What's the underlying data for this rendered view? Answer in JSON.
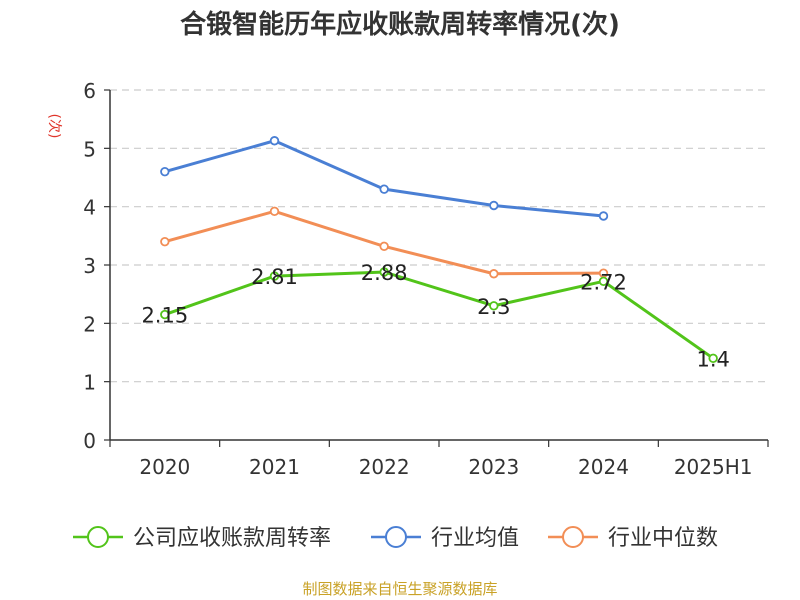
{
  "chart_data": {
    "type": "line",
    "title": "合锻智能历年应收账款周转率情况(次)",
    "ylabel": "(次)",
    "ylim": [
      0,
      6
    ],
    "y_ticks": [
      "0",
      "1",
      "2",
      "3",
      "4",
      "5",
      "6"
    ],
    "grid": true,
    "legend_position": "bottom",
    "categories": [
      "2020",
      "2021",
      "2022",
      "2023",
      "2024",
      "2025H1"
    ],
    "series": [
      {
        "name": "公司应收账款周转率",
        "color": "#52c41a",
        "values": [
          2.15,
          2.81,
          2.88,
          2.3,
          2.72,
          1.4
        ],
        "labels": [
          "2.15",
          "2.81",
          "2.88",
          "2.3",
          "2.72",
          "1.4"
        ]
      },
      {
        "name": "行业均值",
        "color": "#4a7fd4",
        "values": [
          4.6,
          5.13,
          4.3,
          4.02,
          3.84,
          null
        ]
      },
      {
        "name": "行业中位数",
        "color": "#f28e56",
        "values": [
          3.4,
          3.92,
          3.32,
          2.85,
          2.86,
          null
        ]
      }
    ]
  },
  "source": "制图数据来自恒生聚源数据库",
  "colors": {
    "axis": "#333333",
    "grid": "#cccccc",
    "ylabel": "#e0352b",
    "source": "#c9a227"
  }
}
